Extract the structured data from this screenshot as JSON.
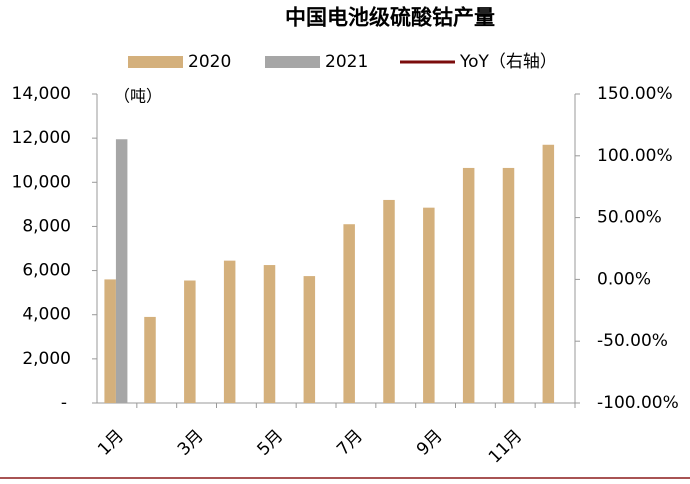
{
  "chart_data": {
    "type": "bar",
    "title": "中国电池级硫酸钴产量",
    "annotation": "（吨）",
    "categories": [
      "1月",
      null,
      "3月",
      null,
      "5月",
      null,
      "7月",
      null,
      "9月",
      null,
      "11月",
      null
    ],
    "series": [
      {
        "name": "2020",
        "color": "#d4b07c",
        "values": [
          5600,
          3900,
          5550,
          6450,
          6250,
          5750,
          8100,
          9200,
          8850,
          10650,
          10650,
          11700
        ]
      },
      {
        "name": "2021",
        "color": "#a6a6a6",
        "values": [
          11950,
          null,
          null,
          null,
          null,
          null,
          null,
          null,
          null,
          null,
          null,
          null
        ]
      },
      {
        "name": "YoY（右轴）",
        "color": "#7b0c0c",
        "type": "line",
        "axis": "y2",
        "values": [
          null,
          null,
          null,
          null,
          null,
          null,
          null,
          null,
          null,
          null,
          null,
          null
        ]
      }
    ],
    "ylim": [
      0,
      14000
    ],
    "yticks": [
      {
        "value": 0,
        "label": "-"
      },
      {
        "value": 2000,
        "label": "2,000"
      },
      {
        "value": 4000,
        "label": "4,000"
      },
      {
        "value": 6000,
        "label": "6,000"
      },
      {
        "value": 8000,
        "label": "8,000"
      },
      {
        "value": 10000,
        "label": "10,000"
      },
      {
        "value": 12000,
        "label": "12,000"
      },
      {
        "value": 14000,
        "label": "14,000"
      }
    ],
    "y2lim": [
      -100,
      150
    ],
    "y2ticks": [
      {
        "value": -100,
        "label": "-100.00%"
      },
      {
        "value": -50,
        "label": "-50.00%"
      },
      {
        "value": 0,
        "label": "0.00%"
      },
      {
        "value": 50,
        "label": "50.00%"
      },
      {
        "value": 100,
        "label": "100.00%"
      },
      {
        "value": 150,
        "label": "150.00%"
      }
    ],
    "legend": "top"
  }
}
